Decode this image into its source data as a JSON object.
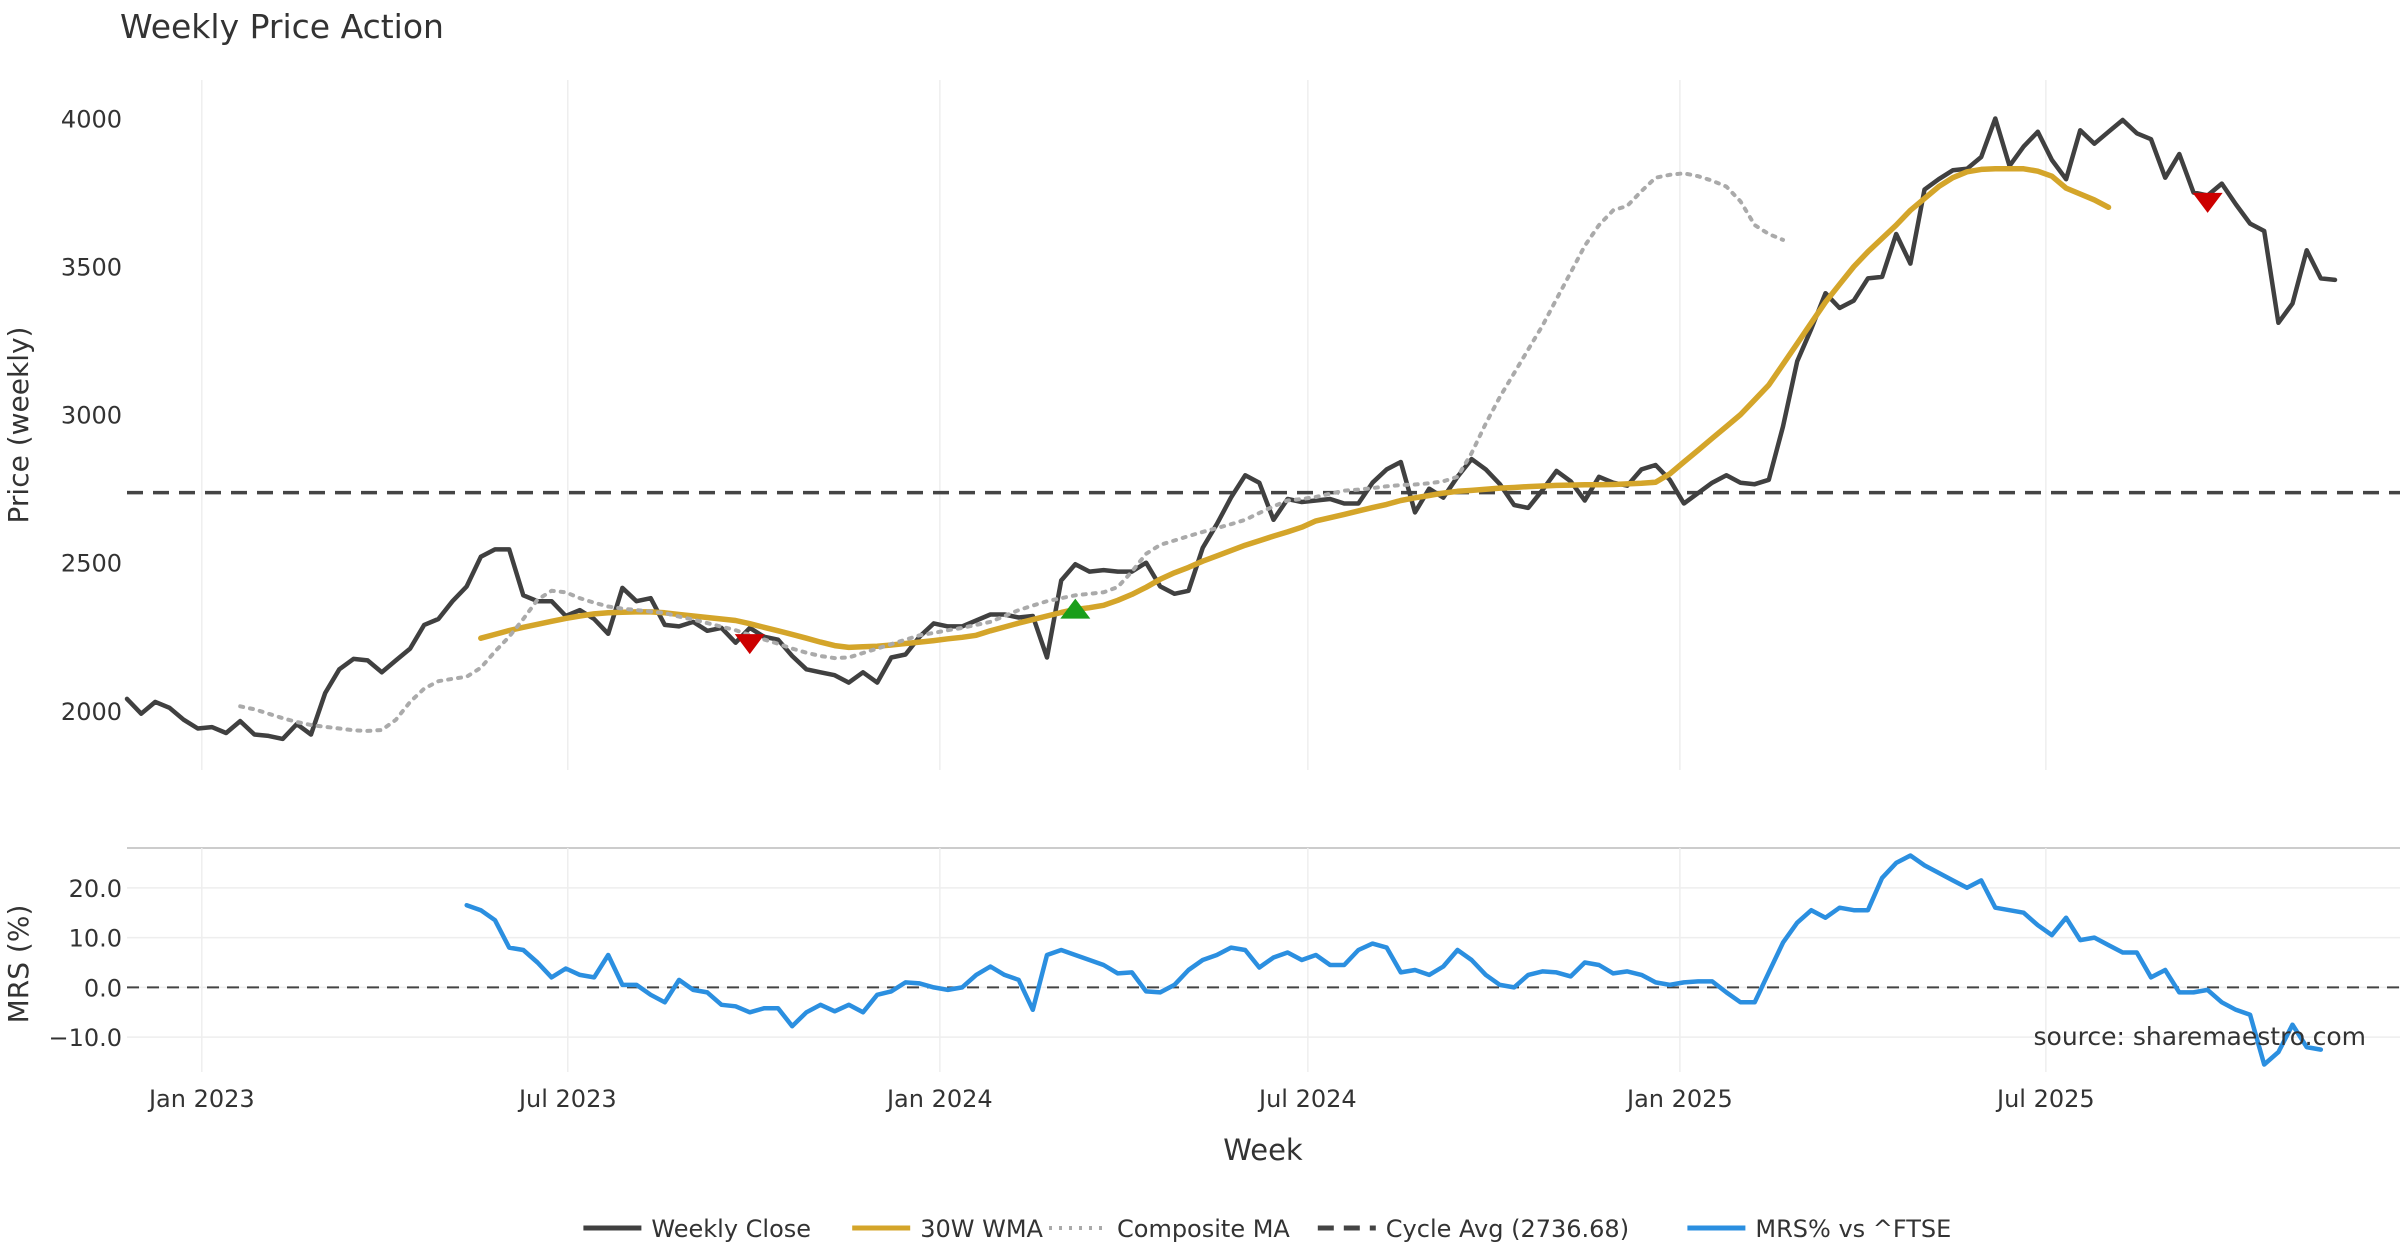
{
  "chart_data": [
    {
      "type": "line",
      "title": "Weekly Price Action",
      "ylabel": "Price (weekly)",
      "ylim": [
        1800,
        4130
      ],
      "xlim": [
        "2022-11-25",
        "2025-11-21"
      ],
      "yticks": [
        {
          "v": 2000,
          "label": "2000"
        },
        {
          "v": 2500,
          "label": "2500"
        },
        {
          "v": 3000,
          "label": "3000"
        },
        {
          "v": 3500,
          "label": "3500"
        },
        {
          "v": 4000,
          "label": "4000"
        }
      ],
      "grid": true,
      "reference_line": {
        "name": "Cycle Avg (2736.68)",
        "value": 2736.68,
        "color": "#444444"
      },
      "series": [
        {
          "name": "Weekly Close",
          "color": "#404040",
          "style": "solid",
          "values": [
            2040,
            1990,
            2030,
            2010,
            1970,
            1940,
            1945,
            1925,
            1965,
            1920,
            1915,
            1905,
            1955,
            1920,
            2060,
            2140,
            2175,
            2170,
            2130,
            2170,
            2210,
            2290,
            2310,
            2370,
            2420,
            2520,
            2545,
            2545,
            2390,
            2370,
            2370,
            2320,
            2340,
            2310,
            2260,
            2415,
            2370,
            2380,
            2290,
            2285,
            2300,
            2270,
            2280,
            2230,
            2280,
            2250,
            2240,
            2185,
            2140,
            2130,
            2120,
            2095,
            2130,
            2095,
            2180,
            2190,
            2250,
            2295,
            2285,
            2285,
            2305,
            2325,
            2325,
            2315,
            2320,
            2180,
            2440,
            2495,
            2470,
            2475,
            2470,
            2470,
            2500,
            2420,
            2395,
            2405,
            2550,
            2630,
            2720,
            2795,
            2770,
            2645,
            2715,
            2705,
            2710,
            2715,
            2700,
            2700,
            2770,
            2815,
            2840,
            2670,
            2750,
            2720,
            2790,
            2850,
            2815,
            2765,
            2695,
            2685,
            2745,
            2810,
            2775,
            2710,
            2790,
            2770,
            2760,
            2815,
            2830,
            2780,
            2700,
            2735,
            2770,
            2795,
            2770,
            2765,
            2780,
            2960,
            3180,
            3290,
            3410,
            3360,
            3385,
            3460,
            3465,
            3610,
            3510,
            3760,
            3795,
            3825,
            3830,
            3870,
            4000,
            3840,
            3905,
            3955,
            3860,
            3795,
            3960,
            3915,
            3955,
            3995,
            3950,
            3930,
            3800,
            3880,
            3750,
            3740,
            3780,
            3710,
            3645,
            3620,
            3310,
            3375,
            3555,
            3460,
            3455
          ],
          "x_start": "2022-11-25",
          "x_step_days": 7
        },
        {
          "name": "30W WMA",
          "color": "#d4a52a",
          "style": "solid",
          "values": [
            2245,
            2258,
            2271,
            2282,
            2292,
            2302,
            2312,
            2320,
            2327,
            2331,
            2333,
            2334,
            2334,
            2331,
            2325,
            2320,
            2315,
            2310,
            2305,
            2294,
            2282,
            2270,
            2258,
            2245,
            2232,
            2220,
            2214,
            2216,
            2218,
            2222,
            2227,
            2232,
            2237,
            2243,
            2248,
            2255,
            2270,
            2283,
            2296,
            2308,
            2320,
            2332,
            2342,
            2348,
            2356,
            2373,
            2393,
            2417,
            2444,
            2466,
            2484,
            2505,
            2523,
            2541,
            2559,
            2574,
            2590,
            2604,
            2620,
            2641,
            2652,
            2663,
            2675,
            2686,
            2697,
            2710,
            2719,
            2727,
            2735,
            2741,
            2744,
            2748,
            2752,
            2754,
            2757,
            2759,
            2761,
            2762,
            2763,
            2763,
            2764,
            2766,
            2768,
            2772,
            2800,
            2840,
            2880,
            2920,
            2960,
            3000,
            3050,
            3100,
            3170,
            3240,
            3310,
            3380,
            3440,
            3500,
            3550,
            3595,
            3640,
            3690,
            3730,
            3770,
            3800,
            3820,
            3828,
            3830,
            3830,
            3830,
            3822,
            3805,
            3765,
            3745,
            3725,
            3700
          ],
          "x_start": "2023-05-19",
          "x_step_days": 7
        },
        {
          "name": "Composite MA",
          "color": "#aaaaaa",
          "style": "dotted",
          "values": [
            2015,
            2005,
            1990,
            1975,
            1962,
            1952,
            1946,
            1940,
            1934,
            1932,
            1935,
            1970,
            2030,
            2075,
            2100,
            2108,
            2115,
            2145,
            2200,
            2250,
            2310,
            2375,
            2405,
            2400,
            2380,
            2365,
            2352,
            2345,
            2340,
            2335,
            2330,
            2318,
            2308,
            2296,
            2284,
            2272,
            2256,
            2241,
            2226,
            2210,
            2196,
            2185,
            2178,
            2180,
            2195,
            2210,
            2225,
            2240,
            2255,
            2263,
            2272,
            2280,
            2290,
            2300,
            2320,
            2340,
            2355,
            2370,
            2380,
            2390,
            2395,
            2400,
            2418,
            2470,
            2530,
            2560,
            2575,
            2590,
            2604,
            2617,
            2630,
            2645,
            2668,
            2690,
            2710,
            2715,
            2722,
            2733,
            2743,
            2747,
            2752,
            2758,
            2762,
            2764,
            2768,
            2775,
            2790,
            2870,
            2970,
            3060,
            3140,
            3220,
            3300,
            3390,
            3480,
            3570,
            3640,
            3690,
            3705,
            3755,
            3800,
            3810,
            3815,
            3805,
            3790,
            3770,
            3720,
            3640,
            3610,
            3590
          ],
          "x_start": "2023-01-20",
          "x_step_days": 7
        }
      ],
      "markers": [
        {
          "type": "sell",
          "x": "2023-09-29",
          "y": 2225,
          "color": "#cc0000"
        },
        {
          "type": "buy",
          "x": "2024-03-08",
          "y": 2345,
          "color": "#1a9e1a"
        },
        {
          "type": "sell",
          "x": "2025-09-19",
          "y": 3715,
          "color": "#cc0000"
        }
      ]
    },
    {
      "type": "line",
      "ylabel": "MRS (%)",
      "ylim": [
        -17,
        28
      ],
      "yticks": [
        {
          "v": -10,
          "label": "−10.0"
        },
        {
          "v": 0,
          "label": "0.0"
        },
        {
          "v": 10,
          "label": "10.0"
        },
        {
          "v": 20,
          "label": "20.0"
        }
      ],
      "xlabel": "Week",
      "xticks": [
        {
          "date": "2023-01-01",
          "label": "Jan 2023"
        },
        {
          "date": "2023-07-01",
          "label": "Jul 2023"
        },
        {
          "date": "2024-01-01",
          "label": "Jan 2024"
        },
        {
          "date": "2024-07-01",
          "label": "Jul 2024"
        },
        {
          "date": "2025-01-01",
          "label": "Jan 2025"
        },
        {
          "date": "2025-07-01",
          "label": "Jul 2025"
        }
      ],
      "reference_line": {
        "value": 0,
        "color": "#444444"
      },
      "series": [
        {
          "name": "MRS% vs ^FTSE",
          "color": "#2b8fe0",
          "style": "solid",
          "values": [
            16.5,
            15.5,
            13.5,
            8.0,
            7.5,
            5.0,
            2.0,
            3.8,
            2.5,
            2.0,
            6.5,
            0.5,
            0.5,
            -1.5,
            -3.0,
            1.5,
            -0.5,
            -1.0,
            -3.5,
            -3.8,
            -5.0,
            -4.2,
            -4.2,
            -7.8,
            -5.0,
            -3.5,
            -4.8,
            -3.5,
            -5.0,
            -1.5,
            -0.8,
            1.0,
            0.8,
            0.0,
            -0.5,
            0.0,
            2.5,
            4.2,
            2.5,
            1.5,
            -4.5,
            6.5,
            7.5,
            6.5,
            5.5,
            4.5,
            2.8,
            3.0,
            -0.8,
            -1.0,
            0.5,
            3.5,
            5.5,
            6.5,
            8.0,
            7.5,
            4.0,
            6.0,
            7.0,
            5.5,
            6.5,
            4.5,
            4.5,
            7.5,
            8.8,
            8.0,
            3.0,
            3.5,
            2.5,
            4.2,
            7.5,
            5.5,
            2.5,
            0.5,
            0.0,
            2.5,
            3.2,
            3.0,
            2.2,
            5.0,
            4.5,
            2.8,
            3.2,
            2.5,
            1.0,
            0.5,
            1.0,
            1.2,
            1.2,
            -1.0,
            -3.0,
            -3.0,
            3.0,
            9.0,
            13.0,
            15.5,
            14.0,
            16.0,
            15.5,
            15.5,
            22.0,
            25.0,
            26.5,
            24.5,
            23.0,
            21.5,
            20.0,
            21.5,
            16.0,
            15.5,
            15.0,
            12.5,
            10.5,
            14.0,
            9.5,
            10.0,
            8.5,
            7.0,
            7.0,
            2.0,
            3.5,
            -1.0,
            -1.0,
            -0.5,
            -3.0,
            -4.5,
            -5.5,
            -15.5,
            -13.0,
            -7.5,
            -12.0,
            -12.5
          ],
          "x_start": "2023-05-12",
          "x_step_days": 7
        }
      ]
    }
  ],
  "legend": {
    "placement": "bottom",
    "items": [
      {
        "label": "Weekly Close",
        "color": "#404040",
        "style": "solid"
      },
      {
        "label": "30W WMA",
        "color": "#d4a52a",
        "style": "solid"
      },
      {
        "label": "Composite MA",
        "color": "#aaaaaa",
        "style": "dotted"
      },
      {
        "label": "Cycle Avg (2736.68)",
        "color": "#444444",
        "style": "dashed"
      },
      {
        "label": "MRS% vs ^FTSE",
        "color": "#2b8fe0",
        "style": "solid"
      }
    ]
  },
  "source_note": "source: sharemaestro.com"
}
